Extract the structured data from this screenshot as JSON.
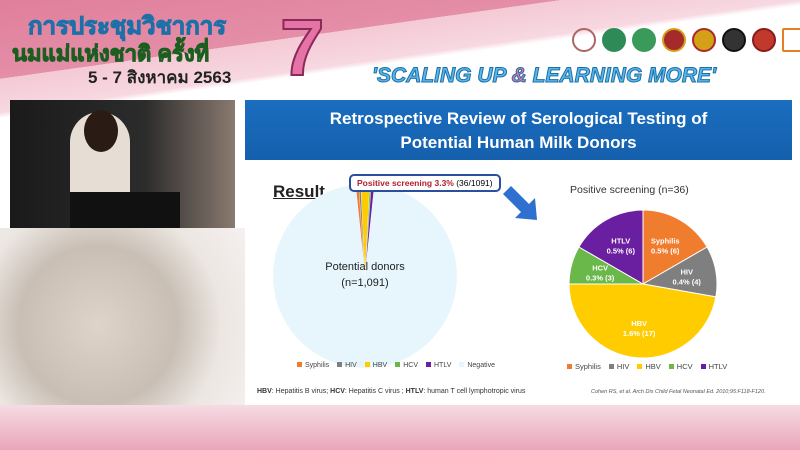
{
  "header": {
    "thai_line1": "การประชุมวิชาการ",
    "thai_line2": "นมแม่แห่งชาติ ครั้งที่",
    "number": "7",
    "date": "5 - 7 สิงหาคม 2563",
    "tagline_a": "'SCALING UP ",
    "tagline_amp": "&",
    "tagline_b": " LEARNING MORE'",
    "logos": [
      "logo-1",
      "logo-2",
      "logo-3",
      "logo-4",
      "logo-5",
      "logo-6",
      "logo-7",
      "logo-8"
    ]
  },
  "slide": {
    "title_line1": "Retrospective Review of Serological Testing of",
    "title_line2": "Potential Human Milk Donors",
    "result_heading": "Result",
    "callout_bold": "Positive screening 3.3%",
    "callout_rest": " (36/1091)",
    "left_label1": "Potential donors",
    "left_label2": "(n=1,091)",
    "footnote_parts": [
      "HBV",
      ": Hepatitis B virus; ",
      "HCV",
      ": Hepatitis C virus ; ",
      "HTLV",
      ": human T cell lymphotropic virus"
    ],
    "citation": "Cohen RS, et al. Arch Dis Child Fetal Neonatal Ed. 2010;95:F118-F120."
  },
  "colors": {
    "Syphilis": "#f07c2e",
    "HIV": "#7f7f7f",
    "HBV": "#ffcc00",
    "HCV": "#6ab84a",
    "HTLV": "#6a1fa0",
    "Negative": "#e6f6fc",
    "title_bar": "#1565b5"
  },
  "chart_data": [
    {
      "type": "pie",
      "title": "",
      "categories": [
        "Syphilis",
        "HIV",
        "HBV",
        "HCV",
        "HTLV",
        "Negative"
      ],
      "values": [
        6,
        4,
        17,
        3,
        6,
        1055
      ],
      "legend": "bottom"
    },
    {
      "type": "pie",
      "title": "Positive screening (n=36)",
      "categories": [
        "Syphilis",
        "HIV",
        "HBV",
        "HCV",
        "HTLV"
      ],
      "values": [
        6,
        4,
        17,
        3,
        6
      ],
      "labels": [
        "0.5% (6)",
        "0.4% (4)",
        "1.6% (17)",
        "0.3% (3)",
        "0.5% (6)"
      ],
      "legend": "bottom"
    }
  ]
}
